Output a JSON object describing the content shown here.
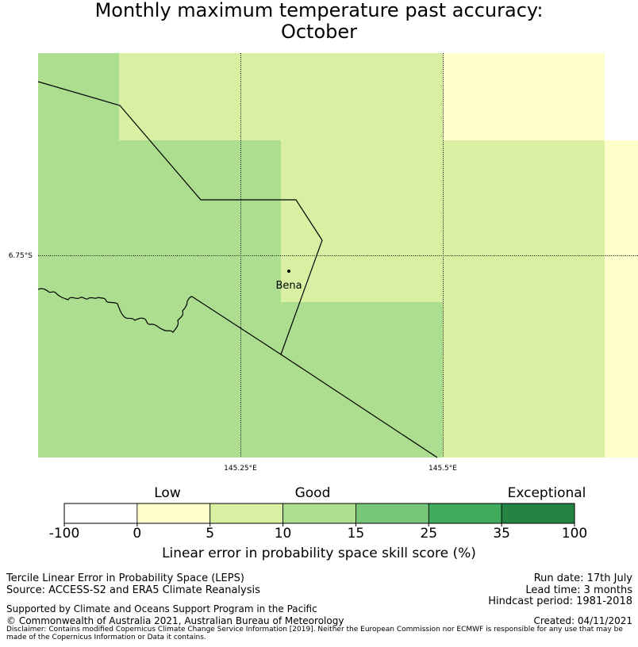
{
  "title": {
    "line1": "Monthly maximum temperature past accuracy:",
    "line2": "October"
  },
  "map": {
    "lat_label": "6.75°S",
    "lon_labels": [
      "145.25°E",
      "145.5°E"
    ],
    "place": "Bena",
    "colors": {
      "lt5": "#ffffcc",
      "5to10": "#d9f0a3",
      "10to15": "#addd8e"
    }
  },
  "colorbar": {
    "category_labels": [
      "Low",
      "Good",
      "Exceptional"
    ],
    "tick_labels": [
      "-100",
      "0",
      "5",
      "10",
      "15",
      "25",
      "35",
      "100"
    ],
    "colors": [
      "#ffffff",
      "#ffffcc",
      "#d9f0a3",
      "#addd8e",
      "#78c679",
      "#41ab5d",
      "#238443"
    ],
    "label": "Linear error in probability space skill score (%)"
  },
  "footer": {
    "line1": "Tercile Linear Error in Probability Space (LEPS)",
    "line2": "Source: ACCESS-S2 and ERA5 Climate Reanalysis",
    "line3": "Supported by Climate and Oceans Support Program in the Pacific",
    "line4": "© Commonwealth of Australia 2021, Australian Bureau of Meteorology",
    "run_date": "Run date: 17th July",
    "lead_time": "Lead time: 3 months",
    "hindcast": "Hindcast period: 1981-2018",
    "created": "Created: 04/11/2021",
    "disclaimer": "Disclaimer: Contains modified Copernicus Climate Change Service Information [2019]. Neither the European Commission nor ECMWF is responsible for any use that may be made of the Copernicus Information or Data it contains."
  }
}
